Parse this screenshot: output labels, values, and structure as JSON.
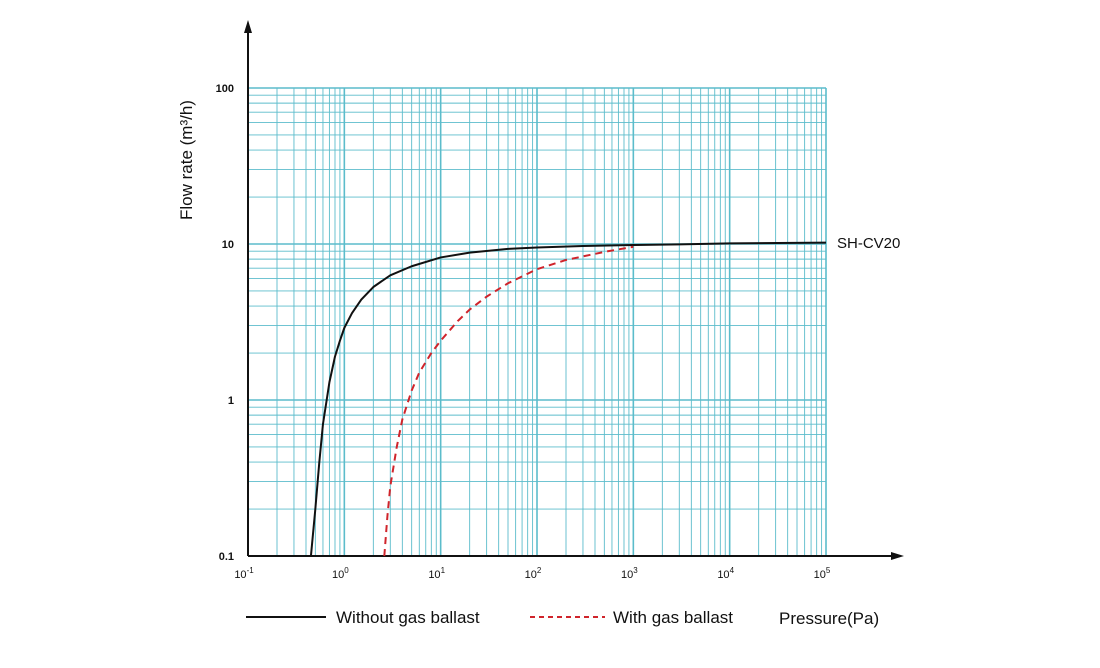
{
  "chart_data": {
    "type": "line",
    "ylabel": "Flow rate (m³/h)",
    "xlabel": "Pressure(Pa)",
    "x_scale": "log",
    "y_scale": "log",
    "xlim": [
      0.1,
      100000
    ],
    "ylim": [
      0.1,
      100
    ],
    "x_ticks": [
      {
        "value": 0.1,
        "base": "10",
        "exp": "-1"
      },
      {
        "value": 1,
        "base": "10",
        "exp": "0"
      },
      {
        "value": 10,
        "base": "10",
        "exp": "1"
      },
      {
        "value": 100,
        "base": "10",
        "exp": "2"
      },
      {
        "value": 1000,
        "base": "10",
        "exp": "3"
      },
      {
        "value": 10000,
        "base": "10",
        "exp": "4"
      },
      {
        "value": 100000,
        "base": "10",
        "exp": "5"
      }
    ],
    "y_ticks": [
      {
        "value": 0.1,
        "label": "0.1"
      },
      {
        "value": 1,
        "label": "1"
      },
      {
        "value": 10,
        "label": "10"
      },
      {
        "value": 100,
        "label": "100"
      }
    ],
    "grid": true,
    "grid_color": "#5bbccb",
    "series_label": "SH-CV20",
    "series": [
      {
        "name": "Without gas ballast",
        "color": "#111111",
        "style": "solid",
        "x": [
          0.45,
          0.5,
          0.55,
          0.6,
          0.7,
          0.8,
          0.9,
          1.0,
          1.2,
          1.5,
          2,
          3,
          5,
          10,
          20,
          50,
          100,
          300,
          1000,
          3000,
          10000,
          100000
        ],
        "y": [
          0.1,
          0.2,
          0.4,
          0.7,
          1.3,
          1.9,
          2.4,
          2.9,
          3.6,
          4.4,
          5.3,
          6.3,
          7.2,
          8.2,
          8.8,
          9.3,
          9.5,
          9.7,
          9.85,
          9.95,
          10.1,
          10.2
        ]
      },
      {
        "name": "With gas ballast",
        "color": "#d0242b",
        "style": "dashed",
        "x": [
          2.6,
          2.8,
          3.0,
          3.5,
          4,
          5,
          6,
          8,
          10,
          15,
          20,
          30,
          50,
          100,
          200,
          500,
          1000
        ],
        "y": [
          0.1,
          0.18,
          0.28,
          0.5,
          0.75,
          1.15,
          1.5,
          2.0,
          2.4,
          3.2,
          3.8,
          4.6,
          5.6,
          6.9,
          7.9,
          8.9,
          9.6
        ]
      }
    ],
    "legend_position": "bottom"
  }
}
